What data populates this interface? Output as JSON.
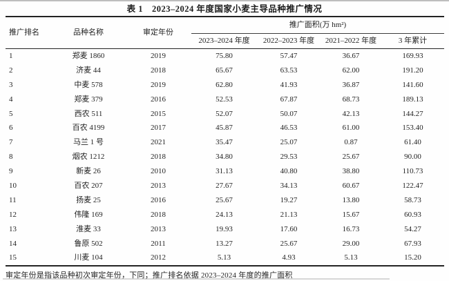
{
  "page": {
    "title": "表 1　2023–2024 年度国家小麦主导品种推广情况",
    "footnote": "审定年份是指该品种初次审定年份，下同；推广排名依据 2023–2024 年度的推广面积"
  },
  "table": {
    "headers": {
      "rank": "推广排名",
      "variety": "品种名称",
      "year": "审定年份",
      "area_group": "推广面积(万 hm²)",
      "y2324": "2023–2024 年度",
      "y2223": "2022–2023 年度",
      "y2122": "2021–2022 年度",
      "total3": "3 年累计"
    },
    "rows": [
      {
        "rank": "1",
        "variety": "郑麦 1860",
        "year": "2019",
        "y2324": "75.80",
        "y2223": "57.47",
        "y2122": "36.67",
        "total3": "169.93"
      },
      {
        "rank": "2",
        "variety": "济麦 44",
        "year": "2018",
        "y2324": "65.67",
        "y2223": "63.53",
        "y2122": "62.00",
        "total3": "191.20"
      },
      {
        "rank": "3",
        "variety": "中麦 578",
        "year": "2019",
        "y2324": "62.80",
        "y2223": "41.93",
        "y2122": "36.87",
        "total3": "141.60"
      },
      {
        "rank": "4",
        "variety": "郑麦 379",
        "year": "2016",
        "y2324": "52.53",
        "y2223": "67.87",
        "y2122": "68.73",
        "total3": "189.13"
      },
      {
        "rank": "5",
        "variety": "西农 511",
        "year": "2015",
        "y2324": "52.07",
        "y2223": "50.07",
        "y2122": "42.13",
        "total3": "144.27"
      },
      {
        "rank": "6",
        "variety": "百农 4199",
        "year": "2017",
        "y2324": "45.87",
        "y2223": "46.53",
        "y2122": "61.00",
        "total3": "153.40"
      },
      {
        "rank": "7",
        "variety": "马兰 1 号",
        "year": "2021",
        "y2324": "35.47",
        "y2223": "25.07",
        "y2122": "0.87",
        "total3": "61.40"
      },
      {
        "rank": "8",
        "variety": "烟农 1212",
        "year": "2018",
        "y2324": "34.80",
        "y2223": "29.53",
        "y2122": "25.67",
        "total3": "90.00"
      },
      {
        "rank": "9",
        "variety": "新麦 26",
        "year": "2010",
        "y2324": "31.13",
        "y2223": "40.80",
        "y2122": "38.80",
        "total3": "110.73"
      },
      {
        "rank": "10",
        "variety": "百农 207",
        "year": "2013",
        "y2324": "27.67",
        "y2223": "34.13",
        "y2122": "60.67",
        "total3": "122.47"
      },
      {
        "rank": "11",
        "variety": "扬麦 25",
        "year": "2016",
        "y2324": "25.67",
        "y2223": "19.27",
        "y2122": "13.80",
        "total3": "58.73"
      },
      {
        "rank": "12",
        "variety": "伟隆 169",
        "year": "2018",
        "y2324": "24.13",
        "y2223": "21.13",
        "y2122": "15.67",
        "total3": "60.93"
      },
      {
        "rank": "13",
        "variety": "淮麦 33",
        "year": "2013",
        "y2324": "19.93",
        "y2223": "17.60",
        "y2122": "16.73",
        "total3": "54.27"
      },
      {
        "rank": "14",
        "variety": "鲁原 502",
        "year": "2011",
        "y2324": "13.27",
        "y2223": "25.67",
        "y2122": "29.00",
        "total3": "67.93"
      },
      {
        "rank": "15",
        "variety": "川麦 104",
        "year": "2012",
        "y2324": "5.13",
        "y2223": "4.93",
        "y2122": "5.13",
        "total3": "15.20"
      }
    ]
  }
}
